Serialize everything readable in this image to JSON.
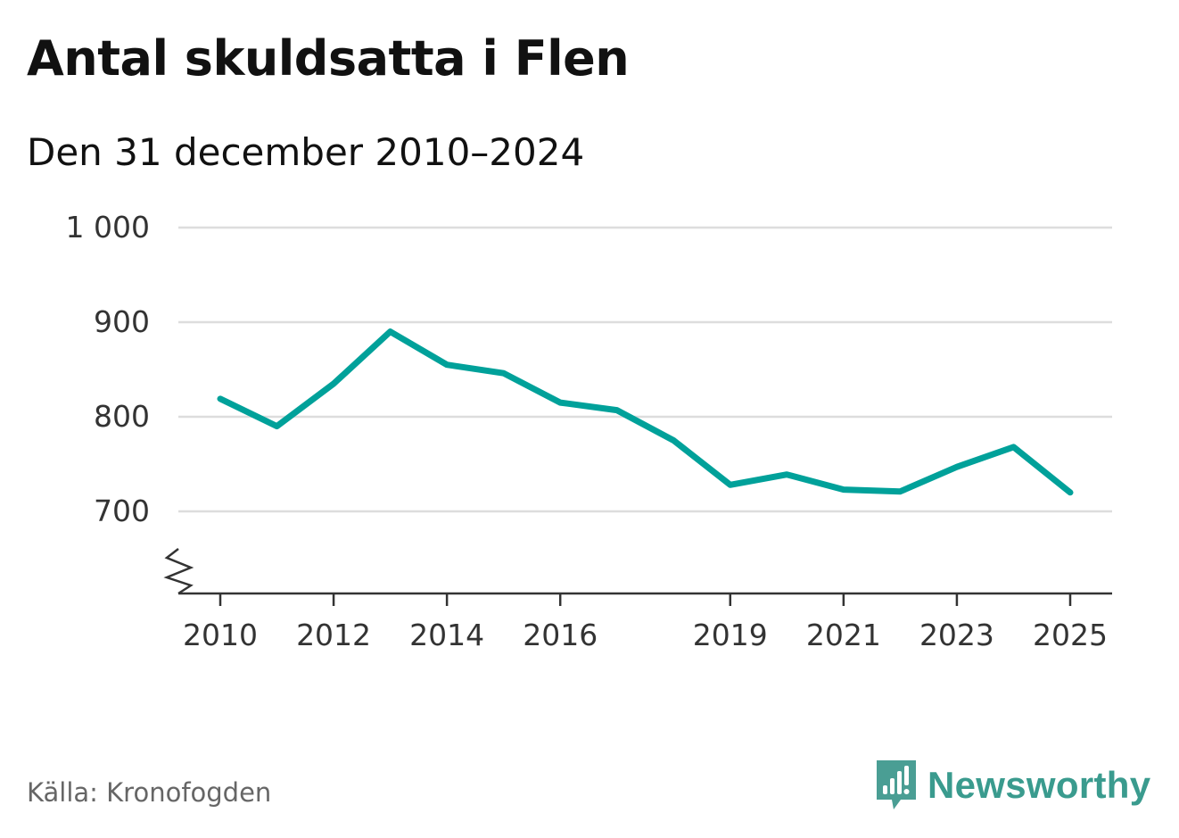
{
  "header": {
    "title": "Antal skuldsatta i Flen",
    "subtitle": "Den 31 december 2010–2024"
  },
  "footer": {
    "source": "Källa: Kronofogden",
    "brand": "Newsworthy"
  },
  "colors": {
    "line": "#00a19a",
    "grid": "#dddddd",
    "axis": "#333333",
    "brand": "#3a9b8e"
  },
  "chart_data": {
    "type": "line",
    "title": "Antal skuldsatta i Flen",
    "subtitle": "Den 31 december 2010–2024",
    "xlabel": "",
    "ylabel": "",
    "x": [
      2010,
      2011,
      2012,
      2013,
      2014,
      2015,
      2016,
      2017,
      2018,
      2019,
      2020,
      2021,
      2022,
      2023,
      2024,
      2025
    ],
    "series": [
      {
        "values": [
          819,
          790,
          835,
          890,
          855,
          846,
          815,
          807,
          775,
          728,
          739,
          723,
          721,
          747,
          768,
          720
        ]
      }
    ],
    "x_ticks": [
      2010,
      2012,
      2014,
      2016,
      2019,
      2021,
      2023,
      2025
    ],
    "x_tick_labels": [
      "2010",
      "2012",
      "2014",
      "2016",
      "2019",
      "2021",
      "2023",
      "2025"
    ],
    "y_ticks": [
      700,
      800,
      900,
      1000
    ],
    "y_tick_labels": [
      "700",
      "800",
      "900",
      "1 000"
    ],
    "ylim": [
      615,
      1000
    ],
    "xlim": [
      2010,
      2025
    ],
    "y_axis_break": true,
    "grid": true,
    "legend": "none"
  }
}
